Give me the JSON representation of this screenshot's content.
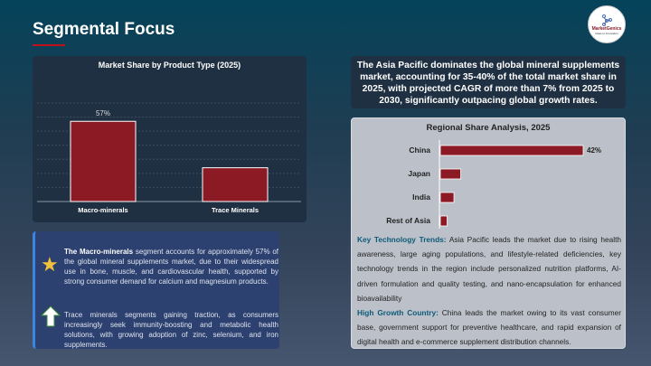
{
  "header": {
    "title": "Segmental Focus",
    "logo_text": "MarketGenics",
    "logo_tagline": "Ideas to Innovation"
  },
  "chart_data": [
    {
      "type": "bar",
      "title": "Market Share by Product Type (2025)",
      "categories": [
        "Macro-minerals",
        "Trace Minerals"
      ],
      "values": [
        57,
        24
      ],
      "data_labels": [
        "57%",
        ""
      ],
      "ylim": [
        0,
        70
      ],
      "grid": true,
      "colors": {
        "bar": "#8b1a24"
      }
    },
    {
      "type": "bar",
      "orientation": "horizontal",
      "title": "Regional Share Analysis, 2025",
      "categories": [
        "China",
        "Japan",
        "India",
        "Rest of Asia"
      ],
      "values": [
        42,
        6,
        4,
        2
      ],
      "data_labels": [
        "42%",
        "",
        "",
        ""
      ],
      "colors": {
        "bar": "#8b1a24"
      }
    }
  ],
  "summary": "The Asia Pacific dominates the global mineral supplements market, accounting for 35-40% of the total market share in 2025, with projected CAGR of more than 7% from 2025 to 2030, significantly outpacing global growth rates.",
  "trends": {
    "k1": "Key Technology Trends:",
    "t1": " Asia Pacific leads the market due to rising health awareness, large aging populations, and lifestyle-related deficiencies, key technology trends in the region include personalized nutrition platforms, AI-driven formulation and quality testing, and nano-encapsulation for enhanced bioavailability",
    "k2": "High Growth Country:",
    "t2": " China leads the market owing to its vast consumer base, government support for preventive healthcare, and rapid expansion of digital health and e-commerce supplement distribution channels."
  },
  "insights": {
    "b1": "The Macro-minerals",
    "t1": " segment accounts for approximately 57% of the global mineral supplements market, due to their widespread use in bone, muscle, and cardiovascular health, supported by strong consumer demand for calcium and magnesium products.",
    "t2": "Trace minerals segments gaining traction, as consumers increasingly seek immunity-boosting and metabolic health solutions, with growing adoption of zinc, selenium, and iron supplements.",
    "icons": [
      "star-icon",
      "up-arrow-icon"
    ]
  }
}
